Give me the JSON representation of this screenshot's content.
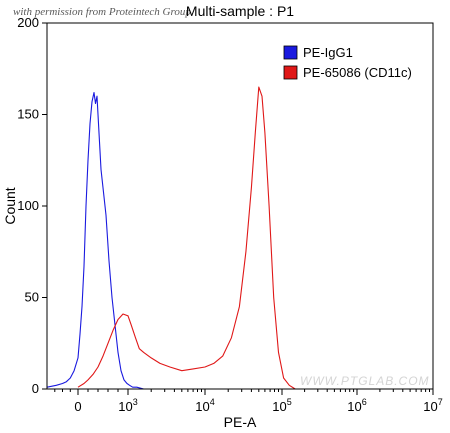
{
  "caption": "with permission from Proteintech Group",
  "watermark": "WWW.PTGLAB.COM",
  "chart_data": {
    "type": "histogram",
    "title": "Multi-sample : P1",
    "xlabel": "PE-A",
    "ylabel": "Count",
    "xscale": "biexponential",
    "xlim": [
      -400,
      10000000
    ],
    "ylim": [
      0,
      200
    ],
    "xticks": [
      {
        "value": 0,
        "base": "0",
        "exp": ""
      },
      {
        "value": 1000,
        "base": "10",
        "exp": "3"
      },
      {
        "value": 10000,
        "base": "10",
        "exp": "4"
      },
      {
        "value": 100000,
        "base": "10",
        "exp": "5"
      },
      {
        "value": 1000000,
        "base": "10",
        "exp": "6"
      },
      {
        "value": 10000000,
        "base": "10",
        "exp": "7"
      }
    ],
    "yticks": [
      {
        "value": 0,
        "label": "0"
      },
      {
        "value": 50,
        "label": "50"
      },
      {
        "value": 100,
        "label": "100"
      },
      {
        "value": 150,
        "label": "150"
      },
      {
        "value": 200,
        "label": "200"
      }
    ],
    "legend_position": "top-right",
    "series": [
      {
        "name": "PE-IgG1",
        "color": "#1a1adf",
        "x": [
          -400,
          -280,
          -200,
          -150,
          -100,
          -50,
          0,
          40,
          80,
          120,
          160,
          200,
          240,
          280,
          320,
          350,
          380,
          420,
          460,
          500,
          560,
          620,
          680,
          740,
          800,
          860,
          920,
          980,
          1050,
          1150,
          1300,
          1600
        ],
        "y": [
          1,
          2,
          3,
          4,
          6,
          10,
          17,
          30,
          45,
          67,
          100,
          125,
          145,
          157,
          162,
          156,
          160,
          140,
          120,
          110,
          95,
          70,
          50,
          35,
          20,
          10,
          5,
          3,
          2,
          1,
          1,
          0
        ]
      },
      {
        "name": "PE-65086 (CD11c)",
        "color": "#e01818",
        "x": [
          0,
          120,
          200,
          300,
          400,
          500,
          600,
          700,
          800,
          900,
          1000,
          1100,
          1250,
          1400,
          1600,
          2000,
          2600,
          3500,
          5000,
          7000,
          10000,
          13000,
          17000,
          22000,
          28000,
          34000,
          40000,
          45000,
          50000,
          55000,
          60000,
          68000,
          78000,
          90000,
          105000,
          125000,
          150000
        ],
        "y": [
          1,
          3,
          5,
          8,
          12,
          18,
          25,
          32,
          38,
          41,
          40,
          35,
          28,
          22,
          20,
          17,
          14,
          12,
          10,
          11,
          12,
          14,
          18,
          28,
          45,
          75,
          110,
          140,
          165,
          160,
          140,
          100,
          50,
          20,
          6,
          2,
          0
        ]
      }
    ]
  }
}
